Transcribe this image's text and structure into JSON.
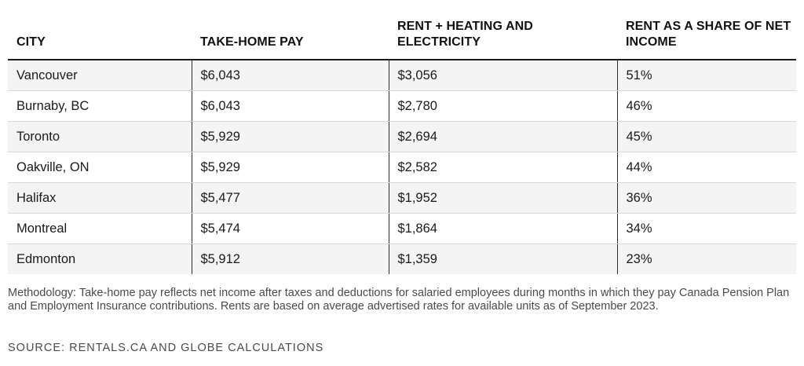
{
  "chart_data": {
    "type": "table",
    "columns": [
      "CITY",
      "TAKE-HOME PAY",
      "RENT + HEATING AND ELECTRICITY",
      "RENT AS A SHARE OF NET INCOME"
    ],
    "rows": [
      [
        "Vancouver",
        "$6,043",
        "$3,056",
        "51%"
      ],
      [
        "Burnaby, BC",
        "$6,043",
        "$2,780",
        "46%"
      ],
      [
        "Toronto",
        "$5,929",
        "$2,694",
        "45%"
      ],
      [
        "Oakville, ON",
        "$5,929",
        "$2,582",
        "44%"
      ],
      [
        "Halifax",
        "$5,477",
        "$1,952",
        "36%"
      ],
      [
        "Montreal",
        "$5,474",
        "$1,864",
        "34%"
      ],
      [
        "Edmonton",
        "$5,912",
        "$1,359",
        "23%"
      ]
    ]
  },
  "note": "Methodology: Take-home pay reflects net income after taxes and deductions for salaried employees during months in which they pay Canada Pension Plan and Employment Insurance contributions. Rents are based on average advertised rates for available units as of September 2023.",
  "source": "SOURCE: RENTALS.CA AND GLOBE CALCULATIONS",
  "colors": {
    "stripe": "#f4f4f4",
    "text": "#1a1a1a",
    "muted": "#4a4a4a",
    "rule": "#1a1a1a"
  }
}
